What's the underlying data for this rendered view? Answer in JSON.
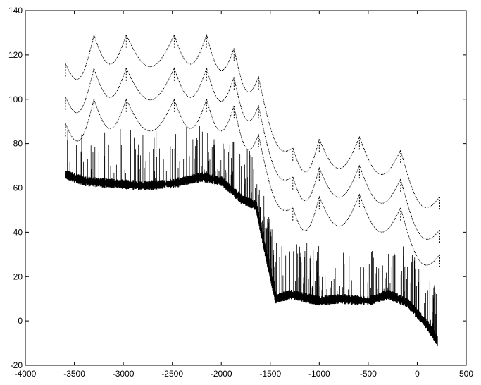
{
  "chart_data": {
    "type": "scatter",
    "title": "",
    "xlabel": "",
    "ylabel": "",
    "xlim": [
      -4000,
      500
    ],
    "ylim": [
      -20,
      140
    ],
    "x_ticks": [
      -4000,
      -3500,
      -3000,
      -2500,
      -2000,
      -1500,
      -1000,
      -500,
      0,
      500
    ],
    "y_ticks": [
      -20,
      0,
      20,
      40,
      60,
      80,
      100,
      120,
      140
    ],
    "grid": false,
    "legend": "none",
    "marker_color": "#000000",
    "series": [
      {
        "description_role": "envelope_top",
        "x": [
          -3590,
          -3300,
          -2970,
          -2480,
          -2150,
          -1870,
          -1620,
          -1270,
          -1000,
          -590,
          -170,
          230
        ],
        "y": [
          116,
          129,
          129,
          129,
          129,
          123,
          110,
          78,
          82,
          83,
          77,
          56
        ]
      },
      {
        "description_role": "envelope_2",
        "x": [
          -3590,
          -3300,
          -2970,
          -2480,
          -2150,
          -1870,
          -1620,
          -1270,
          -1000,
          -590,
          -170,
          230
        ],
        "y": [
          101,
          114,
          114,
          114,
          114,
          110,
          97,
          65,
          69,
          70,
          64,
          41
        ]
      },
      {
        "description_role": "envelope_3",
        "x": [
          -3590,
          -3300,
          -2970,
          -2480,
          -2150,
          -1870,
          -1620,
          -1270,
          -1000,
          -590,
          -170,
          230
        ],
        "y": [
          89,
          100,
          100,
          100,
          100,
          97,
          84,
          51,
          56,
          57,
          51,
          30
        ]
      },
      {
        "description_role": "baseline_band",
        "x": [
          -3590,
          -3400,
          -3100,
          -2800,
          -2500,
          -2200,
          -2000,
          -1800,
          -1650,
          -1550,
          -1450,
          -1300,
          -1100,
          -1000,
          -800,
          -500,
          -300,
          -100,
          100,
          200
        ],
        "y": [
          66,
          63,
          62,
          61,
          62,
          65,
          63,
          55,
          52,
          30,
          10,
          12,
          10,
          9,
          10,
          9,
          12,
          8,
          -2,
          -9
        ]
      }
    ]
  }
}
